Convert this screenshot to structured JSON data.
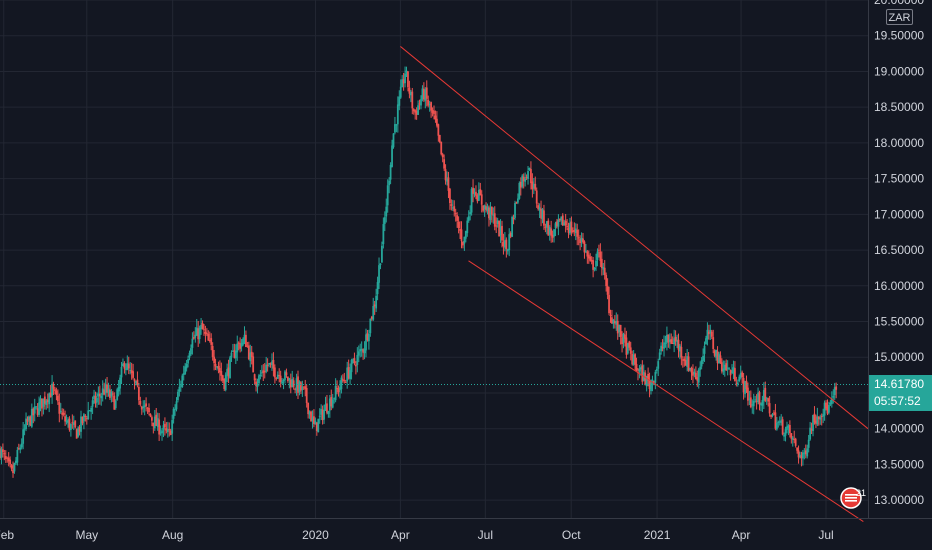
{
  "chart_data": {
    "type": "candlestick",
    "symbol_currency": "ZAR",
    "y_axis": {
      "ylim": [
        12.75,
        20.0
      ],
      "ticks": [
        "20.00000",
        "19.50000",
        "19.00000",
        "18.50000",
        "18.00000",
        "17.50000",
        "17.00000",
        "16.50000",
        "16.00000",
        "15.50000",
        "15.00000",
        "14.50000",
        "14.00000",
        "13.50000",
        "13.00000"
      ]
    },
    "x_axis": {
      "ticks": [
        "Feb",
        "May",
        "Aug",
        "2020",
        "Apr",
        "Jul",
        "Oct",
        "2021",
        "Apr",
        "Jul"
      ],
      "tick_dates": [
        "2019-02-01",
        "2019-05-01",
        "2019-08-01",
        "2020-01-01",
        "2020-04-01",
        "2020-07-01",
        "2020-10-01",
        "2021-01-01",
        "2021-04-01",
        "2021-07-01"
      ],
      "range": [
        "2019-01-28",
        "2021-08-15"
      ]
    },
    "series": [
      {
        "points": [
          [
            "2019-01-28",
            13.7
          ],
          [
            "2019-02-10",
            13.35
          ],
          [
            "2019-02-25",
            14.05
          ],
          [
            "2019-03-10",
            14.3
          ],
          [
            "2019-03-25",
            14.55
          ],
          [
            "2019-04-05",
            14.15
          ],
          [
            "2019-04-20",
            13.95
          ],
          [
            "2019-05-05",
            14.3
          ],
          [
            "2019-05-20",
            14.55
          ],
          [
            "2019-06-01",
            14.35
          ],
          [
            "2019-06-10",
            14.95
          ],
          [
            "2019-06-20",
            14.65
          ],
          [
            "2019-07-01",
            14.3
          ],
          [
            "2019-07-15",
            14.05
          ],
          [
            "2019-07-28",
            13.9
          ],
          [
            "2019-08-08",
            14.55
          ],
          [
            "2019-08-20",
            15.2
          ],
          [
            "2019-09-01",
            15.4
          ],
          [
            "2019-09-12",
            15.1
          ],
          [
            "2019-09-25",
            14.65
          ],
          [
            "2019-10-08",
            15.15
          ],
          [
            "2019-10-18",
            15.25
          ],
          [
            "2019-10-30",
            14.65
          ],
          [
            "2019-11-10",
            14.9
          ],
          [
            "2019-11-25",
            14.75
          ],
          [
            "2019-12-08",
            14.65
          ],
          [
            "2019-12-20",
            14.5
          ],
          [
            "2019-12-31",
            14.0
          ],
          [
            "2020-01-12",
            14.3
          ],
          [
            "2020-01-25",
            14.55
          ],
          [
            "2020-02-08",
            14.85
          ],
          [
            "2020-02-22",
            15.15
          ],
          [
            "2020-03-05",
            15.8
          ],
          [
            "2020-03-15",
            16.9
          ],
          [
            "2020-03-24",
            18.1
          ],
          [
            "2020-04-06",
            19.0
          ],
          [
            "2020-04-16",
            18.4
          ],
          [
            "2020-04-26",
            18.7
          ],
          [
            "2020-05-08",
            18.3
          ],
          [
            "2020-05-18",
            17.6
          ],
          [
            "2020-05-28",
            17.0
          ],
          [
            "2020-06-08",
            16.6
          ],
          [
            "2020-06-18",
            17.4
          ],
          [
            "2020-06-30",
            17.1
          ],
          [
            "2020-07-12",
            16.9
          ],
          [
            "2020-07-24",
            16.5
          ],
          [
            "2020-08-06",
            17.4
          ],
          [
            "2020-08-16",
            17.65
          ],
          [
            "2020-08-28",
            17.05
          ],
          [
            "2020-09-10",
            16.7
          ],
          [
            "2020-09-22",
            16.9
          ],
          [
            "2020-10-01",
            16.8
          ],
          [
            "2020-10-12",
            16.65
          ],
          [
            "2020-10-22",
            16.25
          ],
          [
            "2020-11-01",
            16.45
          ],
          [
            "2020-11-12",
            15.6
          ],
          [
            "2020-11-25",
            15.25
          ],
          [
            "2020-12-10",
            14.85
          ],
          [
            "2020-12-25",
            14.6
          ],
          [
            "2021-01-08",
            15.2
          ],
          [
            "2021-01-20",
            15.25
          ],
          [
            "2021-02-01",
            14.95
          ],
          [
            "2021-02-12",
            14.7
          ],
          [
            "2021-02-25",
            15.35
          ],
          [
            "2021-03-08",
            14.95
          ],
          [
            "2021-03-20",
            14.8
          ],
          [
            "2021-04-01",
            14.7
          ],
          [
            "2021-04-12",
            14.35
          ],
          [
            "2021-04-25",
            14.45
          ],
          [
            "2021-05-08",
            14.1
          ],
          [
            "2021-05-22",
            13.95
          ],
          [
            "2021-06-06",
            13.55
          ],
          [
            "2021-06-16",
            14.1
          ],
          [
            "2021-06-25",
            14.25
          ],
          [
            "2021-07-06",
            14.3
          ],
          [
            "2021-07-13",
            14.6
          ]
        ]
      }
    ],
    "channel_lines": [
      {
        "from": [
          "2020-04-01",
          19.35
        ],
        "to": [
          "2021-08-15",
          14.0
        ]
      },
      {
        "from": [
          "2020-06-13",
          16.35
        ],
        "to": [
          "2021-08-10",
          12.7
        ]
      }
    ],
    "last_price": {
      "value": "14.61780",
      "countdown": "05:57:52",
      "y": 14.6178
    },
    "events_badge": "21",
    "colors": {
      "background": "#131722",
      "grid": "#232733",
      "up": "#26a69a",
      "down": "#ef5350",
      "channel": "#e53935",
      "text": "#d1d4dc",
      "axis_bg": "#131722"
    }
  }
}
